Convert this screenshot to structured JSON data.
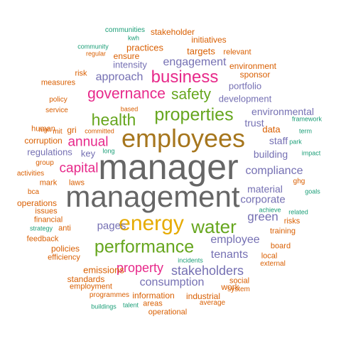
{
  "palette": {
    "gray": "#666666",
    "olive": "#A6761D",
    "magenta": "#E7298A",
    "green": "#66A61E",
    "purple": "#7570B3",
    "orange": "#D95F02",
    "teal": "#1B9E77",
    "gold": "#E6AB02"
  },
  "words": [
    {
      "text": "manager",
      "color": "gray"
    },
    {
      "text": "management",
      "color": "gray"
    },
    {
      "text": "employees",
      "color": "olive"
    },
    {
      "text": "energy",
      "color": "gold"
    },
    {
      "text": "performance",
      "color": "green"
    },
    {
      "text": "properties",
      "color": "green"
    },
    {
      "text": "business",
      "color": "magenta"
    },
    {
      "text": "health",
      "color": "green"
    },
    {
      "text": "governance",
      "color": "magenta"
    },
    {
      "text": "safety",
      "color": "green"
    },
    {
      "text": "water",
      "color": "green"
    },
    {
      "text": "capital",
      "color": "magenta"
    },
    {
      "text": "annual",
      "color": "magenta"
    },
    {
      "text": "property",
      "color": "magenta"
    },
    {
      "text": "stakeholders",
      "color": "purple"
    },
    {
      "text": "tenants",
      "color": "purple"
    },
    {
      "text": "employee",
      "color": "purple"
    },
    {
      "text": "compliance",
      "color": "purple"
    },
    {
      "text": "consumption",
      "color": "purple"
    },
    {
      "text": "engagement",
      "color": "purple"
    },
    {
      "text": "approach",
      "color": "purple"
    },
    {
      "text": "pages",
      "color": "purple"
    },
    {
      "text": "green",
      "color": "purple"
    },
    {
      "text": "corporate",
      "color": "purple"
    },
    {
      "text": "material",
      "color": "purple"
    },
    {
      "text": "building",
      "color": "purple"
    },
    {
      "text": "environmental",
      "color": "purple"
    },
    {
      "text": "trust",
      "color": "purple"
    },
    {
      "text": "data",
      "color": "orange"
    },
    {
      "text": "staff",
      "color": "purple"
    },
    {
      "text": "development",
      "color": "purple"
    },
    {
      "text": "portfolio",
      "color": "purple"
    },
    {
      "text": "intensity",
      "color": "purple"
    },
    {
      "text": "regulations",
      "color": "purple"
    },
    {
      "text": "key",
      "color": "purple"
    },
    {
      "text": "targets",
      "color": "orange"
    },
    {
      "text": "practices",
      "color": "orange"
    },
    {
      "text": "environment",
      "color": "orange"
    },
    {
      "text": "sponsor",
      "color": "orange"
    },
    {
      "text": "initiatives",
      "color": "orange"
    },
    {
      "text": "stakeholder",
      "color": "orange"
    },
    {
      "text": "ensure",
      "color": "orange"
    },
    {
      "text": "relevant",
      "color": "orange"
    },
    {
      "text": "emissions",
      "color": "orange"
    },
    {
      "text": "information",
      "color": "orange"
    },
    {
      "text": "industrial",
      "color": "orange"
    },
    {
      "text": "work",
      "color": "orange"
    },
    {
      "text": "social",
      "color": "orange"
    },
    {
      "text": "standards",
      "color": "orange"
    },
    {
      "text": "employment",
      "color": "orange"
    },
    {
      "text": "policies",
      "color": "orange"
    },
    {
      "text": "operations",
      "color": "orange"
    },
    {
      "text": "corruption",
      "color": "orange"
    },
    {
      "text": "gri",
      "color": "orange"
    },
    {
      "text": "human",
      "color": "orange"
    },
    {
      "text": "mark",
      "color": "orange"
    },
    {
      "text": "laws",
      "color": "orange"
    },
    {
      "text": "issues",
      "color": "orange"
    },
    {
      "text": "financial",
      "color": "orange"
    },
    {
      "text": "anti",
      "color": "orange"
    },
    {
      "text": "feedback",
      "color": "orange"
    },
    {
      "text": "efficiency",
      "color": "orange"
    },
    {
      "text": "training",
      "color": "orange"
    },
    {
      "text": "risks",
      "color": "orange"
    },
    {
      "text": "board",
      "color": "orange"
    },
    {
      "text": "local",
      "color": "orange"
    },
    {
      "text": "external",
      "color": "orange"
    },
    {
      "text": "areas",
      "color": "orange"
    },
    {
      "text": "operational",
      "color": "orange"
    },
    {
      "text": "average",
      "color": "orange"
    },
    {
      "text": "system",
      "color": "orange"
    },
    {
      "text": "programmes",
      "color": "orange"
    },
    {
      "text": "measures",
      "color": "orange"
    },
    {
      "text": "risk",
      "color": "orange"
    },
    {
      "text": "policy",
      "color": "orange"
    },
    {
      "text": "service",
      "color": "orange"
    },
    {
      "text": "high",
      "color": "orange"
    },
    {
      "text": "mit",
      "color": "orange"
    },
    {
      "text": "committed",
      "color": "orange"
    },
    {
      "text": "based",
      "color": "orange"
    },
    {
      "text": "group",
      "color": "orange"
    },
    {
      "text": "activities",
      "color": "orange"
    },
    {
      "text": "bca",
      "color": "orange"
    },
    {
      "text": "ghg",
      "color": "orange"
    },
    {
      "text": "regular",
      "color": "orange"
    },
    {
      "text": "communities",
      "color": "teal"
    },
    {
      "text": "kwh",
      "color": "teal"
    },
    {
      "text": "community",
      "color": "teal"
    },
    {
      "text": "framework",
      "color": "teal"
    },
    {
      "text": "term",
      "color": "teal"
    },
    {
      "text": "park",
      "color": "teal"
    },
    {
      "text": "impact",
      "color": "teal"
    },
    {
      "text": "long",
      "color": "teal"
    },
    {
      "text": "goals",
      "color": "teal"
    },
    {
      "text": "achieve",
      "color": "teal"
    },
    {
      "text": "related",
      "color": "teal"
    },
    {
      "text": "strategy",
      "color": "teal"
    },
    {
      "text": "incidents",
      "color": "teal"
    },
    {
      "text": "buildings",
      "color": "teal"
    },
    {
      "text": "talent",
      "color": "teal"
    }
  ]
}
